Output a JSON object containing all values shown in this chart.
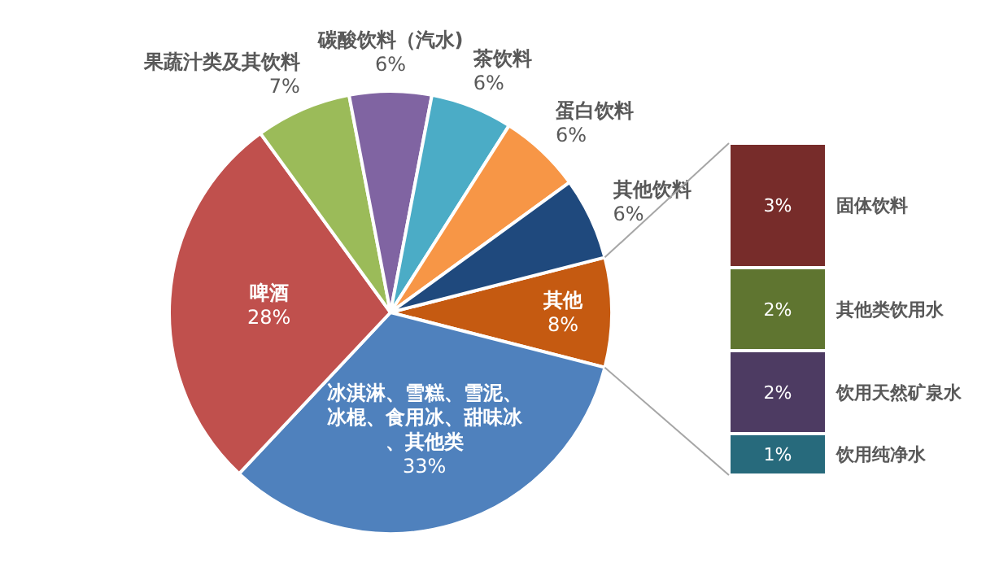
{
  "chart_data": [
    {
      "type": "pie",
      "categories": [
        "其他",
        "冰淇淋、雪糕、雪泥、冰棍、食用冰、甜味冰、其他类",
        "啤酒",
        "果蔬汁类及其饮料",
        "碳酸饮料（汽水)",
        "茶饮料",
        "蛋白饮料",
        "其他饮料"
      ],
      "values": [
        8,
        33,
        28,
        7,
        6,
        6,
        6,
        6
      ],
      "value_labels": [
        "8%",
        "33%",
        "28%",
        "7%",
        "6%",
        "6%",
        "6%",
        "6%"
      ],
      "colors": [
        "#c55a11",
        "#4f81bd",
        "#c0504d",
        "#9bbb59",
        "#8064a2",
        "#4bacc6",
        "#f79646",
        "#1f497d"
      ]
    },
    {
      "type": "bar",
      "stacked": true,
      "categories": [
        null
      ],
      "series": [
        {
          "name": "饮用纯净水",
          "color": "#276a7c",
          "values": [
            1
          ],
          "value_labels": [
            "1%"
          ]
        },
        {
          "name": "饮用天然矿泉水",
          "color": "#4d3b62",
          "values": [
            2
          ],
          "value_labels": [
            "2%"
          ]
        },
        {
          "name": "其他类饮用水",
          "color": "#5f7530",
          "values": [
            2
          ],
          "value_labels": [
            "2%"
          ]
        },
        {
          "name": "固体饮料",
          "color": "#772c2a",
          "values": [
            3
          ],
          "value_labels": [
            "3%"
          ]
        }
      ]
    }
  ]
}
